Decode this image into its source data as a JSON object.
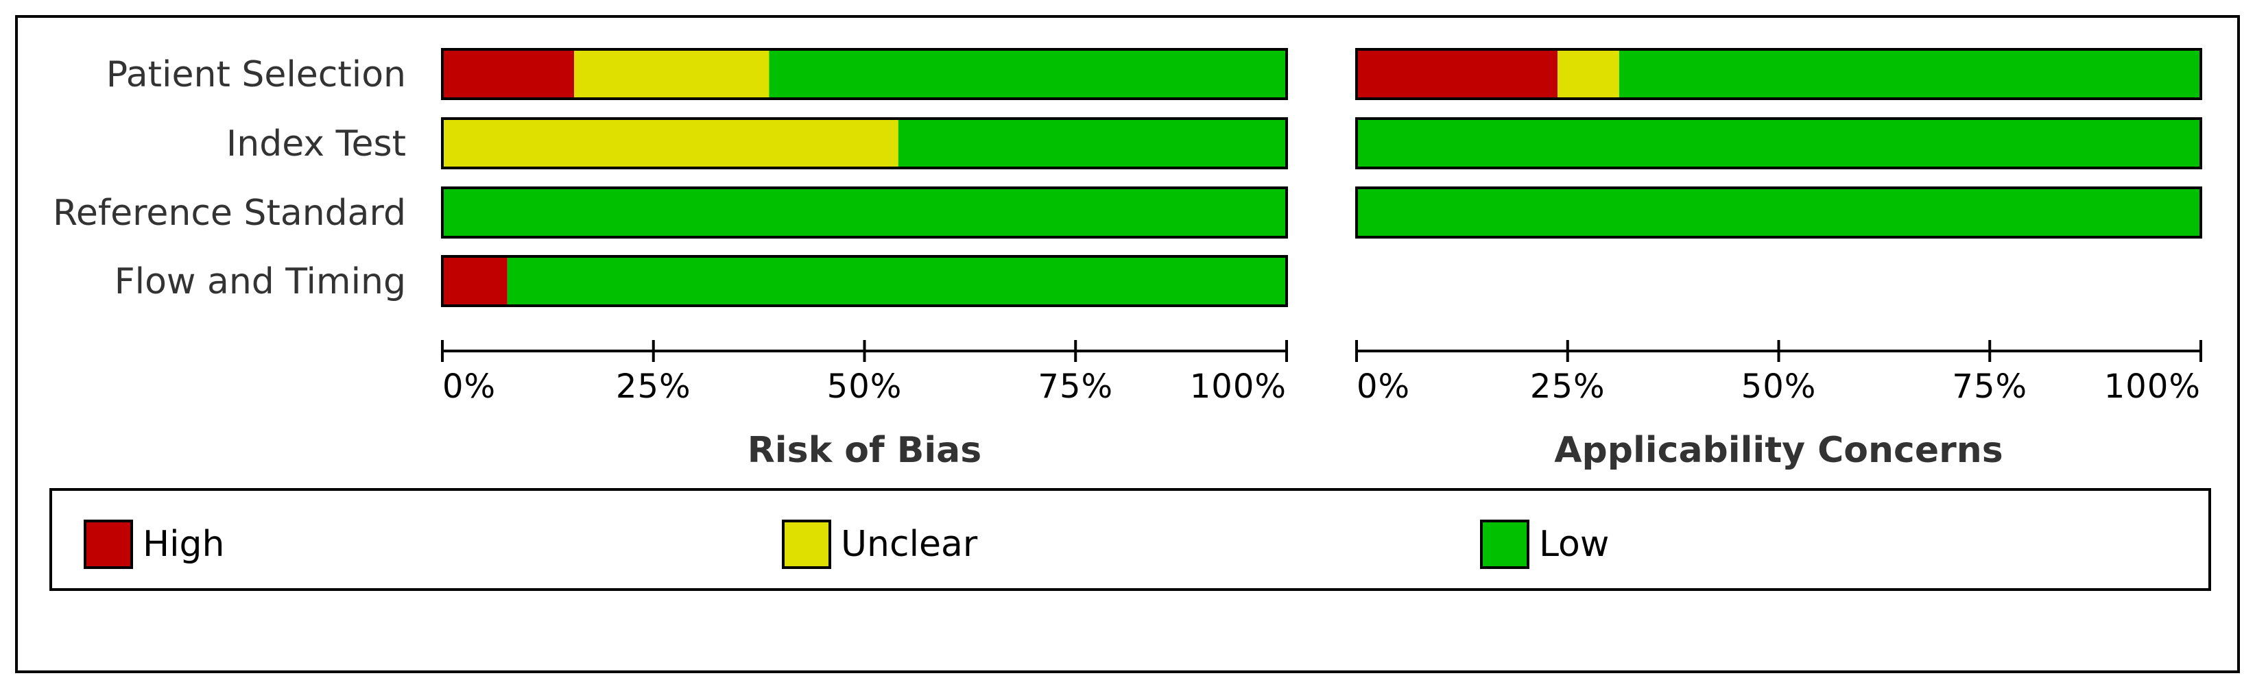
{
  "chart_data": [
    {
      "type": "bar",
      "orientation": "horizontal",
      "stacked": true,
      "title": "Risk of Bias",
      "categories": [
        "Patient Selection",
        "Index Test",
        "Reference Standard",
        "Flow and Timing"
      ],
      "series": [
        {
          "name": "High",
          "color": "#C00000",
          "values": [
            15.6,
            0,
            0,
            7.7
          ]
        },
        {
          "name": "Unclear",
          "color": "#E0E000",
          "values": [
            23.1,
            54.0,
            0,
            0
          ]
        },
        {
          "name": "Low",
          "color": "#00C000",
          "values": [
            61.3,
            46.0,
            100,
            92.3
          ]
        }
      ],
      "xlim": [
        0,
        100
      ],
      "xticks": [
        "0%",
        "25%",
        "50%",
        "75%",
        "100%"
      ],
      "grid": false
    },
    {
      "type": "bar",
      "orientation": "horizontal",
      "stacked": true,
      "title": "Applicability Concerns",
      "categories": [
        "Patient Selection",
        "Index Test",
        "Reference Standard"
      ],
      "series": [
        {
          "name": "High",
          "color": "#C00000",
          "values": [
            23.8,
            0,
            0
          ]
        },
        {
          "name": "Unclear",
          "color": "#E0E000",
          "values": [
            7.3,
            0,
            0
          ]
        },
        {
          "name": "Low",
          "color": "#00C000",
          "values": [
            68.9,
            100,
            100
          ]
        }
      ],
      "xlim": [
        0,
        100
      ],
      "xticks": [
        "0%",
        "25%",
        "50%",
        "75%",
        "100%"
      ],
      "grid": false
    }
  ],
  "legend": {
    "placement": "bottom",
    "items": [
      {
        "label": "High",
        "color": "#C00000"
      },
      {
        "label": "Unclear",
        "color": "#E0E000"
      },
      {
        "label": "Low",
        "color": "#00C000"
      }
    ]
  }
}
